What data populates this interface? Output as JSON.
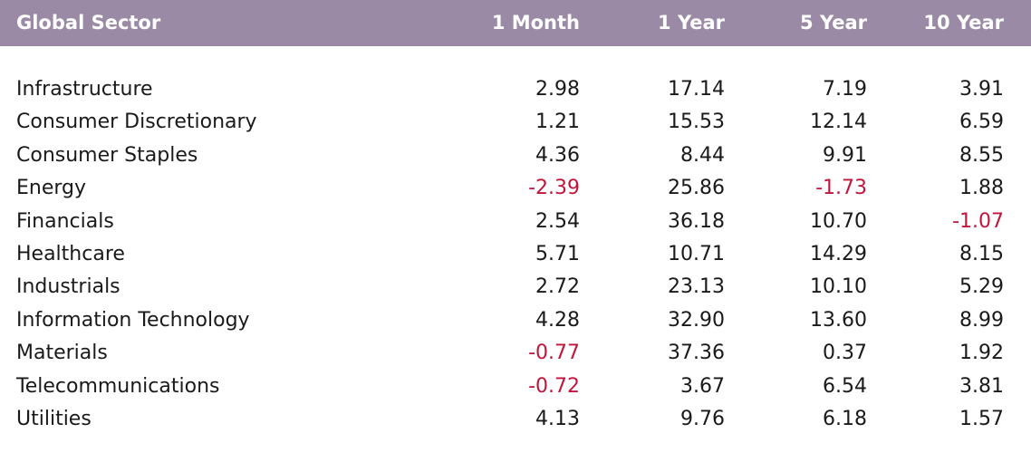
{
  "chart_data": {
    "type": "table",
    "columns": [
      "Global Sector",
      "1 Month",
      "1 Year",
      "5 Year",
      "10 Year"
    ],
    "rows": [
      {
        "sector": "Infrastructure",
        "values": [
          "2.98",
          "17.14",
          "7.19",
          "3.91"
        ]
      },
      {
        "sector": "Consumer Discretionary",
        "values": [
          "1.21",
          "15.53",
          "12.14",
          "6.59"
        ]
      },
      {
        "sector": "Consumer Staples",
        "values": [
          "4.36",
          "8.44",
          "9.91",
          "8.55"
        ]
      },
      {
        "sector": "Energy",
        "values": [
          "-2.39",
          "25.86",
          "-1.73",
          "1.88"
        ]
      },
      {
        "sector": "Financials",
        "values": [
          "2.54",
          "36.18",
          "10.70",
          "-1.07"
        ]
      },
      {
        "sector": "Healthcare",
        "values": [
          "5.71",
          "10.71",
          "14.29",
          "8.15"
        ]
      },
      {
        "sector": "Industrials",
        "values": [
          "2.72",
          "23.13",
          "10.10",
          "5.29"
        ]
      },
      {
        "sector": "Information Technology",
        "values": [
          "4.28",
          "32.90",
          "13.60",
          "8.99"
        ]
      },
      {
        "sector": "Materials",
        "values": [
          "-0.77",
          "37.36",
          "0.37",
          "1.92"
        ]
      },
      {
        "sector": "Telecommunications",
        "values": [
          "-0.72",
          "3.67",
          "6.54",
          "3.81"
        ]
      },
      {
        "sector": "Utilities",
        "values": [
          "4.13",
          "9.76",
          "6.18",
          "1.57"
        ]
      }
    ]
  },
  "colors": {
    "header_bg": "#9b8aa5",
    "header_text": "#ffffff",
    "text": "#1a1a1a",
    "negative": "#c0163c"
  }
}
